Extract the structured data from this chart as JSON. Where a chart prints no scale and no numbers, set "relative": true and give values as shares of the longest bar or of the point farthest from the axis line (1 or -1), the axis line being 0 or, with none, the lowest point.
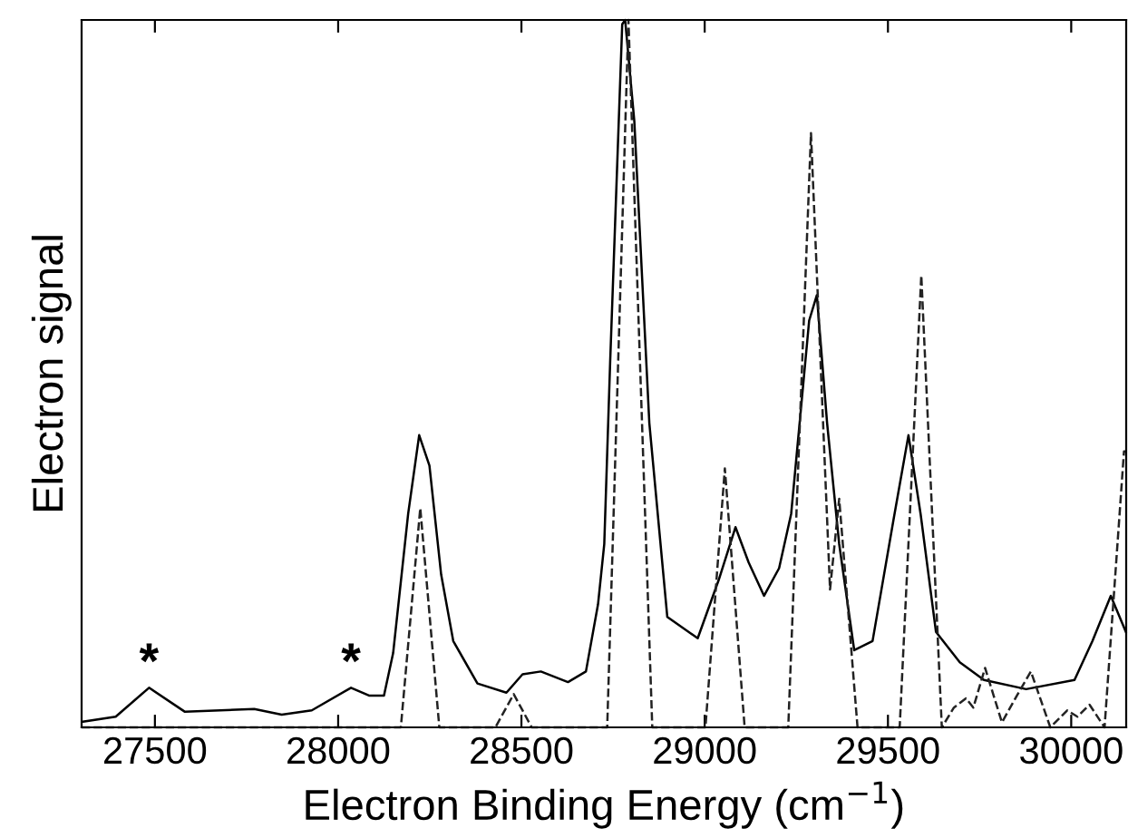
{
  "chart_data": {
    "type": "line",
    "relative": true,
    "xlabel": "Electron Binding Energy (cm$^{−1}$)",
    "ylabel": "Electron signal",
    "xlim": [
      27300,
      30150
    ],
    "xticks": [
      27500,
      28000,
      28500,
      29000,
      29500,
      30000
    ],
    "tick_labels": "x",
    "grid": false,
    "legend": false,
    "marker": "none",
    "annotations": [
      {
        "text": "*",
        "x": 27484,
        "y": 0.056
      },
      {
        "text": "*",
        "x": 28035,
        "y": 0.056
      }
    ],
    "series": [
      {
        "color": "#000000",
        "line_style": "solid",
        "x": [
          27303,
          27393,
          27484,
          27582,
          27771,
          27846,
          27928,
          28035,
          28084,
          28125,
          28150,
          28191,
          28221,
          28249,
          28281,
          28314,
          28380,
          28459,
          28503,
          28553,
          28627,
          28676,
          28709,
          28726,
          28742,
          28775,
          28783,
          28808,
          28849,
          28898,
          28981,
          29038,
          29084,
          29120,
          29162,
          29203,
          29236,
          29285,
          29306,
          29334,
          29367,
          29408,
          29458,
          29515,
          29556,
          29589,
          29631,
          29696,
          29762,
          29877,
          30009,
          30058,
          30108,
          30149
        ],
        "values": [
          0.008,
          0.015,
          0.056,
          0.022,
          0.026,
          0.018,
          0.024,
          0.056,
          0.045,
          0.045,
          0.105,
          0.302,
          0.413,
          0.37,
          0.216,
          0.122,
          0.062,
          0.049,
          0.075,
          0.079,
          0.064,
          0.079,
          0.174,
          0.259,
          0.515,
          0.994,
          1.0,
          0.857,
          0.43,
          0.156,
          0.126,
          0.208,
          0.283,
          0.233,
          0.186,
          0.225,
          0.302,
          0.575,
          0.611,
          0.43,
          0.259,
          0.109,
          0.122,
          0.293,
          0.413,
          0.302,
          0.135,
          0.092,
          0.067,
          0.054,
          0.067,
          0.122,
          0.186,
          0.135
        ]
      },
      {
        "color": "#222222",
        "line_style": "dashed",
        "x": [
          27300,
          28171,
          28224,
          28276,
          28429,
          28479,
          28528,
          28734,
          28792,
          28857,
          29002,
          29055,
          29109,
          29228,
          29290,
          29342,
          29367,
          29417,
          29532,
          29591,
          29647,
          29680,
          29713,
          29733,
          29765,
          29811,
          29852,
          29890,
          29943,
          29989,
          30017,
          30050,
          30091,
          30144,
          30150
        ],
        "values": [
          0,
          0,
          0.31,
          0,
          0,
          0.047,
          0,
          0,
          1.0,
          0,
          0,
          0.366,
          0,
          0,
          0.84,
          0.195,
          0.323,
          0,
          0,
          0.639,
          0,
          0.028,
          0.041,
          0.028,
          0.084,
          0.007,
          0.045,
          0.079,
          0,
          0.024,
          0.015,
          0.032,
          0,
          0.39,
          0.39
        ]
      }
    ]
  }
}
